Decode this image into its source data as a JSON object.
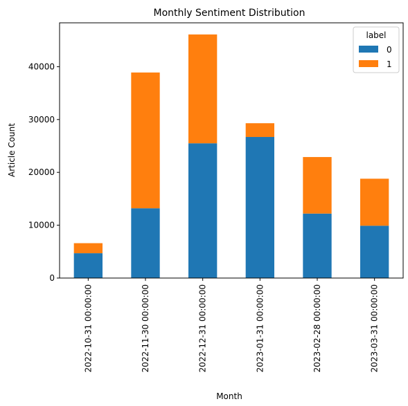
{
  "chart_data": {
    "type": "bar",
    "stacked": true,
    "title": "Monthly Sentiment Distribution",
    "xlabel": "Month",
    "ylabel": "Article Count",
    "categories": [
      "2022-10-31 00:00:00",
      "2022-11-30 00:00:00",
      "2022-12-31 00:00:00",
      "2023-01-31 00:00:00",
      "2023-02-28 00:00:00",
      "2023-03-31 00:00:00"
    ],
    "series": [
      {
        "name": "0",
        "color": "#1f77b4",
        "values": [
          4700,
          13200,
          25500,
          26700,
          12200,
          9900
        ]
      },
      {
        "name": "1",
        "color": "#ff7f0e",
        "values": [
          1900,
          25700,
          20600,
          2600,
          10700,
          8900
        ]
      }
    ],
    "ylim": [
      0,
      48300
    ],
    "yticks": [
      0,
      10000,
      20000,
      30000,
      40000
    ],
    "ytick_labels": [
      "0",
      "10000",
      "20000",
      "30000",
      "40000"
    ],
    "legend": {
      "title": "label",
      "placement": "top-right"
    },
    "grid": false
  }
}
